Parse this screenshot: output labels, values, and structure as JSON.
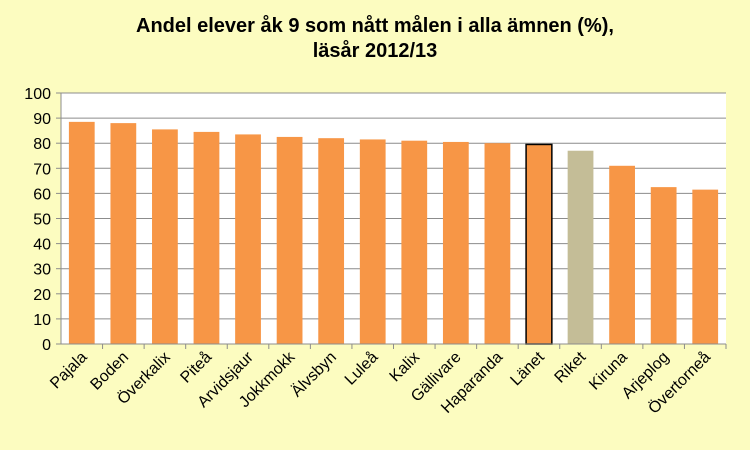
{
  "chart_data": {
    "type": "bar",
    "title_line1": "Andel elever åk 9 som nått målen i alla ämnen (%),",
    "title_line2": "läsår 2012/13",
    "xlabel": "",
    "ylabel": "",
    "ylim": [
      0,
      100
    ],
    "yticks": [
      0,
      10,
      20,
      30,
      40,
      50,
      60,
      70,
      80,
      90,
      100
    ],
    "grid": true,
    "categories": [
      "Pajala",
      "Boden",
      "Överkalix",
      "Piteå",
      "Arvidsjaur",
      "Jokkmokk",
      "Älvsbyn",
      "Luleå",
      "Kalix",
      "Gällivare",
      "Haparanda",
      "Länet",
      "Riket",
      "Kiruna",
      "Arjeplog",
      "Övertorneå"
    ],
    "values": [
      88.5,
      88,
      85.5,
      84.5,
      83.5,
      82.5,
      82,
      81.5,
      81,
      80.5,
      80,
      79.5,
      77,
      71,
      62.5,
      61.5
    ],
    "colors": {
      "default": "#f79646",
      "Länet": "#f79646",
      "Riket": "#c4bd97",
      "highlight_border": "#000000",
      "grid": "#8c8c8c",
      "plot_bg": "#ffffff",
      "background": "#fcfcc0"
    },
    "highlight": "Länet"
  }
}
